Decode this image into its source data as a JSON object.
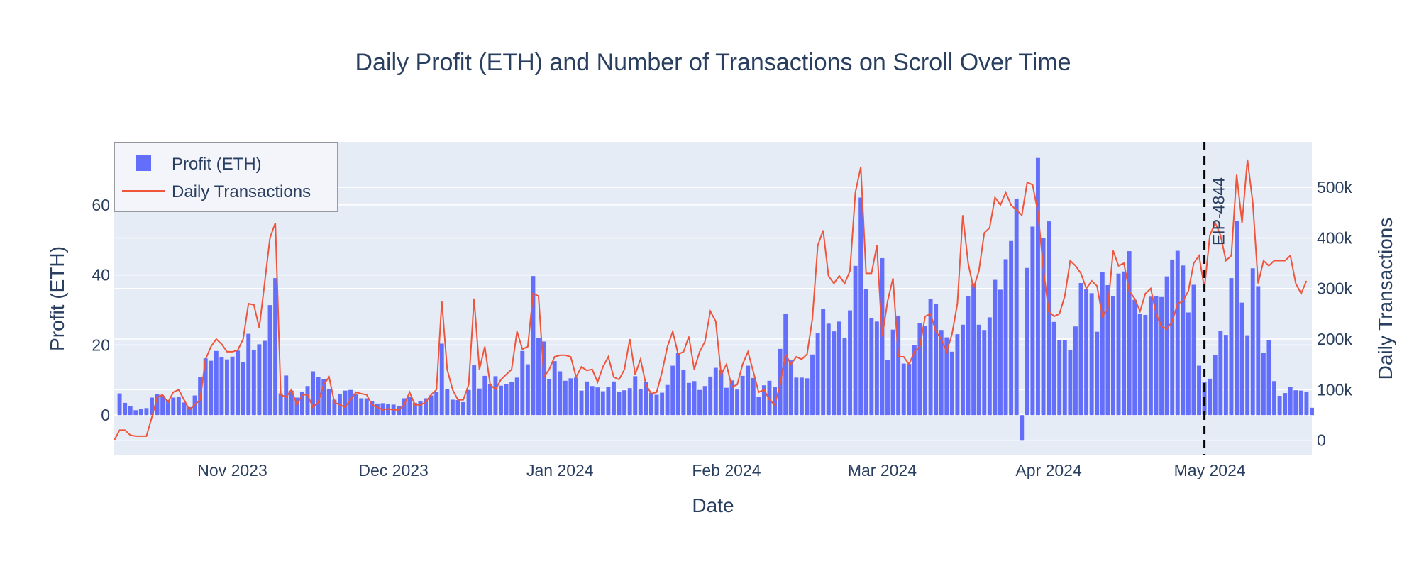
{
  "chart_data": {
    "type": "bar+line",
    "title": "Daily Profit (ETH) and Number of Transactions on Scroll Over Time",
    "xlabel": "Date",
    "ylabel_left": "Profit (ETH)",
    "ylabel_right": "Daily Transactions",
    "x_range": [
      "2023-10-10",
      "2024-05-20"
    ],
    "y_left_range": [
      -11.5,
      78
    ],
    "y_right_range": [
      -30000,
      590000
    ],
    "x_ticks": [
      {
        "date": "2023-11-01",
        "label": "Nov 2023"
      },
      {
        "date": "2023-12-01",
        "label": "Dec 2023"
      },
      {
        "date": "2024-01-01",
        "label": "Jan 2024"
      },
      {
        "date": "2024-02-01",
        "label": "Feb 2024"
      },
      {
        "date": "2024-03-01",
        "label": "Mar 2024"
      },
      {
        "date": "2024-04-01",
        "label": "Apr 2024"
      },
      {
        "date": "2024-05-01",
        "label": "May 2024"
      }
    ],
    "y_left_ticks": [
      0,
      20,
      40,
      60
    ],
    "y_right_ticks": [
      {
        "value": 0,
        "label": "0"
      },
      {
        "value": 100000,
        "label": "100k"
      },
      {
        "value": 200000,
        "label": "200k"
      },
      {
        "value": 300000,
        "label": "300k"
      },
      {
        "value": 400000,
        "label": "400k"
      },
      {
        "value": 500000,
        "label": "500k"
      }
    ],
    "legend_position": "top-left",
    "bar_color": "#636efa",
    "line_color": "#ef553b",
    "annotation": {
      "label": "EIP-4844",
      "date": "2024-04-30",
      "style": "dashed vertical line"
    },
    "series": [
      {
        "name": "Profit (ETH)",
        "type": "bar",
        "axis": "left",
        "start_date": "2023-10-11",
        "values": [
          6.2,
          3.5,
          2.6,
          1.4,
          1.8,
          2.0,
          5.0,
          6.0,
          5.5,
          4.3,
          5.0,
          5.2,
          3.6,
          2.3,
          5.6,
          10.8,
          16.2,
          15.5,
          18.3,
          16.6,
          15.9,
          16.7,
          18.4,
          15.1,
          23.2,
          18.6,
          20.2,
          21.2,
          31.4,
          39.1,
          6.2,
          11.3,
          7.0,
          5.0,
          6.6,
          8.3,
          12.5,
          10.8,
          10.2,
          7.4,
          4.4,
          6.1,
          7.0,
          7.2,
          5.9,
          4.8,
          4.8,
          4.0,
          3.3,
          3.4,
          3.2,
          3.0,
          2.6,
          4.8,
          5.2,
          3.5,
          3.9,
          4.8,
          5.6,
          6.6,
          20.4,
          7.4,
          4.4,
          4.3,
          3.7,
          7.2,
          14.2,
          7.6,
          11.2,
          8.9,
          11.1,
          8.4,
          8.8,
          9.4,
          10.7,
          18.3,
          14.5,
          39.7,
          22.1,
          21.0,
          10.3,
          15.4,
          12.5,
          9.8,
          10.5,
          10.7,
          7.0,
          9.6,
          8.3,
          7.9,
          6.8,
          8.1,
          9.6,
          6.6,
          7.1,
          7.7,
          11.1,
          7.4,
          9.5,
          6.4,
          5.8,
          6.4,
          8.6,
          14.1,
          17.8,
          12.8,
          9.2,
          9.7,
          7.2,
          8.3,
          11.0,
          13.5,
          12.8,
          7.8,
          9.9,
          7.3,
          11.2,
          14.1,
          10.6,
          5.2,
          8.5,
          9.8,
          8.0,
          18.9,
          29.0,
          15.6,
          10.7,
          10.7,
          10.5,
          17.3,
          23.4,
          30.4,
          26.1,
          23.9,
          26.7,
          22.0,
          29.9,
          42.6,
          62.1,
          36.1,
          27.6,
          26.7,
          44.8,
          15.8,
          24.4,
          28.4,
          14.7,
          14.6,
          20.0,
          26.3,
          25.5,
          33.1,
          31.8,
          24.3,
          22.2,
          18.1,
          23.1,
          25.8,
          34.0,
          37.6,
          25.8,
          24.3,
          27.9,
          38.6,
          35.8,
          44.5,
          49.7,
          61.6,
          -7.3,
          42.0,
          53.8,
          73.4,
          50.5,
          55.3,
          26.6,
          21.3,
          21.4,
          18.6,
          25.3,
          37.7,
          35.9,
          34.8,
          23.8,
          40.8,
          37.1,
          33.9,
          40.4,
          41.0,
          46.8,
          32.9,
          28.8,
          28.6,
          33.8,
          33.9,
          33.7,
          39.6,
          44.4,
          46.9,
          42.7,
          29.3,
          37.2,
          14.1,
          9.4,
          10.4,
          17.1,
          24.0,
          22.9,
          39.1,
          55.5,
          32.1,
          22.8,
          41.9,
          36.8,
          17.8,
          21.5,
          9.7,
          5.5,
          6.3,
          8.0,
          7.1,
          7.0,
          6.6,
          2.1
        ]
      },
      {
        "name": "Daily Transactions",
        "type": "line",
        "axis": "right",
        "start_date": "2023-10-10",
        "values": [
          0,
          20000,
          20000,
          10000,
          8000,
          8000,
          8000,
          45000,
          85000,
          90000,
          75000,
          95000,
          100000,
          80000,
          60000,
          70000,
          80000,
          160000,
          185000,
          200000,
          190000,
          175000,
          175000,
          178000,
          200000,
          270000,
          268000,
          222000,
          310000,
          400000,
          430000,
          90000,
          85000,
          100000,
          70000,
          90000,
          90000,
          65000,
          75000,
          110000,
          125000,
          75000,
          70000,
          65000,
          80000,
          95000,
          92000,
          90000,
          70000,
          65000,
          60000,
          62000,
          60000,
          60000,
          70000,
          95000,
          70000,
          70000,
          75000,
          90000,
          100000,
          275000,
          140000,
          100000,
          80000,
          80000,
          110000,
          280000,
          140000,
          185000,
          110000,
          100000,
          120000,
          130000,
          140000,
          215000,
          180000,
          185000,
          290000,
          285000,
          125000,
          140000,
          165000,
          168000,
          168000,
          165000,
          125000,
          145000,
          138000,
          140000,
          115000,
          145000,
          165000,
          125000,
          120000,
          140000,
          200000,
          130000,
          160000,
          110000,
          92000,
          95000,
          135000,
          185000,
          215000,
          170000,
          175000,
          205000,
          140000,
          175000,
          195000,
          255000,
          235000,
          130000,
          150000,
          105000,
          110000,
          150000,
          175000,
          135000,
          95000,
          100000,
          80000,
          70000,
          110000,
          170000,
          150000,
          165000,
          160000,
          170000,
          240000,
          385000,
          415000,
          325000,
          310000,
          325000,
          310000,
          335000,
          490000,
          540000,
          330000,
          330000,
          385000,
          205000,
          275000,
          320000,
          165000,
          165000,
          150000,
          175000,
          185000,
          245000,
          250000,
          215000,
          200000,
          175000,
          210000,
          270000,
          445000,
          350000,
          300000,
          335000,
          410000,
          420000,
          480000,
          465000,
          490000,
          465000,
          455000,
          445000,
          510000,
          505000,
          450000,
          340000,
          255000,
          245000,
          250000,
          285000,
          355000,
          345000,
          330000,
          300000,
          315000,
          305000,
          245000,
          260000,
          375000,
          345000,
          350000,
          295000,
          280000,
          255000,
          290000,
          300000,
          250000,
          225000,
          220000,
          235000,
          270000,
          275000,
          295000,
          350000,
          365000,
          300000,
          405000,
          430000,
          405000,
          355000,
          365000,
          525000,
          430000,
          555000,
          470000,
          310000,
          355000,
          345000,
          355000,
          355000,
          355000,
          365000,
          310000,
          290000,
          315000
        ]
      }
    ]
  }
}
